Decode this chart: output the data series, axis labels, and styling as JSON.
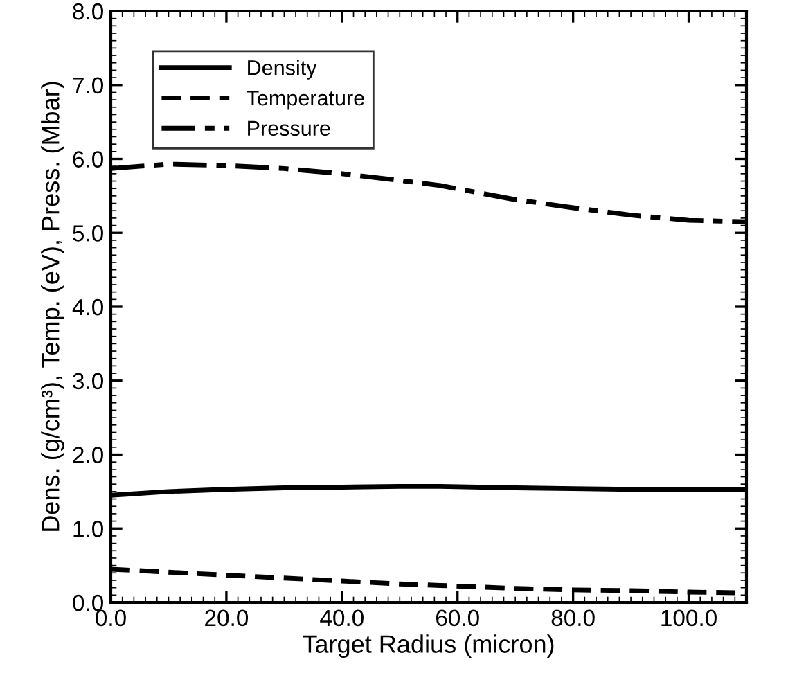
{
  "chart_data": {
    "type": "line",
    "xlabel": "Target Radius (micron)",
    "ylabel": "Dens. (g/cm³), Temp. (eV), Press. (Mbar)",
    "xlim": [
      0,
      110
    ],
    "ylim": [
      0,
      8
    ],
    "xticks": [
      {
        "value": 0,
        "label": "0.0"
      },
      {
        "value": 20,
        "label": "20.0"
      },
      {
        "value": 40,
        "label": "40.0"
      },
      {
        "value": 60,
        "label": "60.0"
      },
      {
        "value": 80,
        "label": "80.0"
      },
      {
        "value": 100,
        "label": "100.0"
      }
    ],
    "yticks": [
      {
        "value": 0,
        "label": "0.0"
      },
      {
        "value": 1,
        "label": "1.0"
      },
      {
        "value": 2,
        "label": "2.0"
      },
      {
        "value": 3,
        "label": "3.0"
      },
      {
        "value": 4,
        "label": "4.0"
      },
      {
        "value": 5,
        "label": "5.0"
      },
      {
        "value": 6,
        "label": "6.0"
      },
      {
        "value": 7,
        "label": "7.0"
      },
      {
        "value": 8,
        "label": "8.0"
      }
    ],
    "x": [
      0,
      10,
      20,
      30,
      40,
      50,
      57,
      70,
      80,
      90,
      100,
      110
    ],
    "series": [
      {
        "name": "Density",
        "color": "#000000",
        "line_style": "solid",
        "values": [
          1.45,
          1.5,
          1.53,
          1.55,
          1.56,
          1.57,
          1.57,
          1.55,
          1.54,
          1.53,
          1.53,
          1.53
        ]
      },
      {
        "name": "Temperature",
        "color": "#000000",
        "line_style": "dashed",
        "values": [
          0.45,
          0.41,
          0.37,
          0.33,
          0.29,
          0.25,
          0.23,
          0.19,
          0.17,
          0.16,
          0.14,
          0.13
        ]
      },
      {
        "name": "Pressure",
        "color": "#000000",
        "line_style": "dashdot",
        "values": [
          5.87,
          5.93,
          5.91,
          5.87,
          5.8,
          5.71,
          5.64,
          5.45,
          5.34,
          5.24,
          5.17,
          5.15
        ]
      }
    ],
    "legend": "top left",
    "grid": false,
    "marker": "none"
  }
}
